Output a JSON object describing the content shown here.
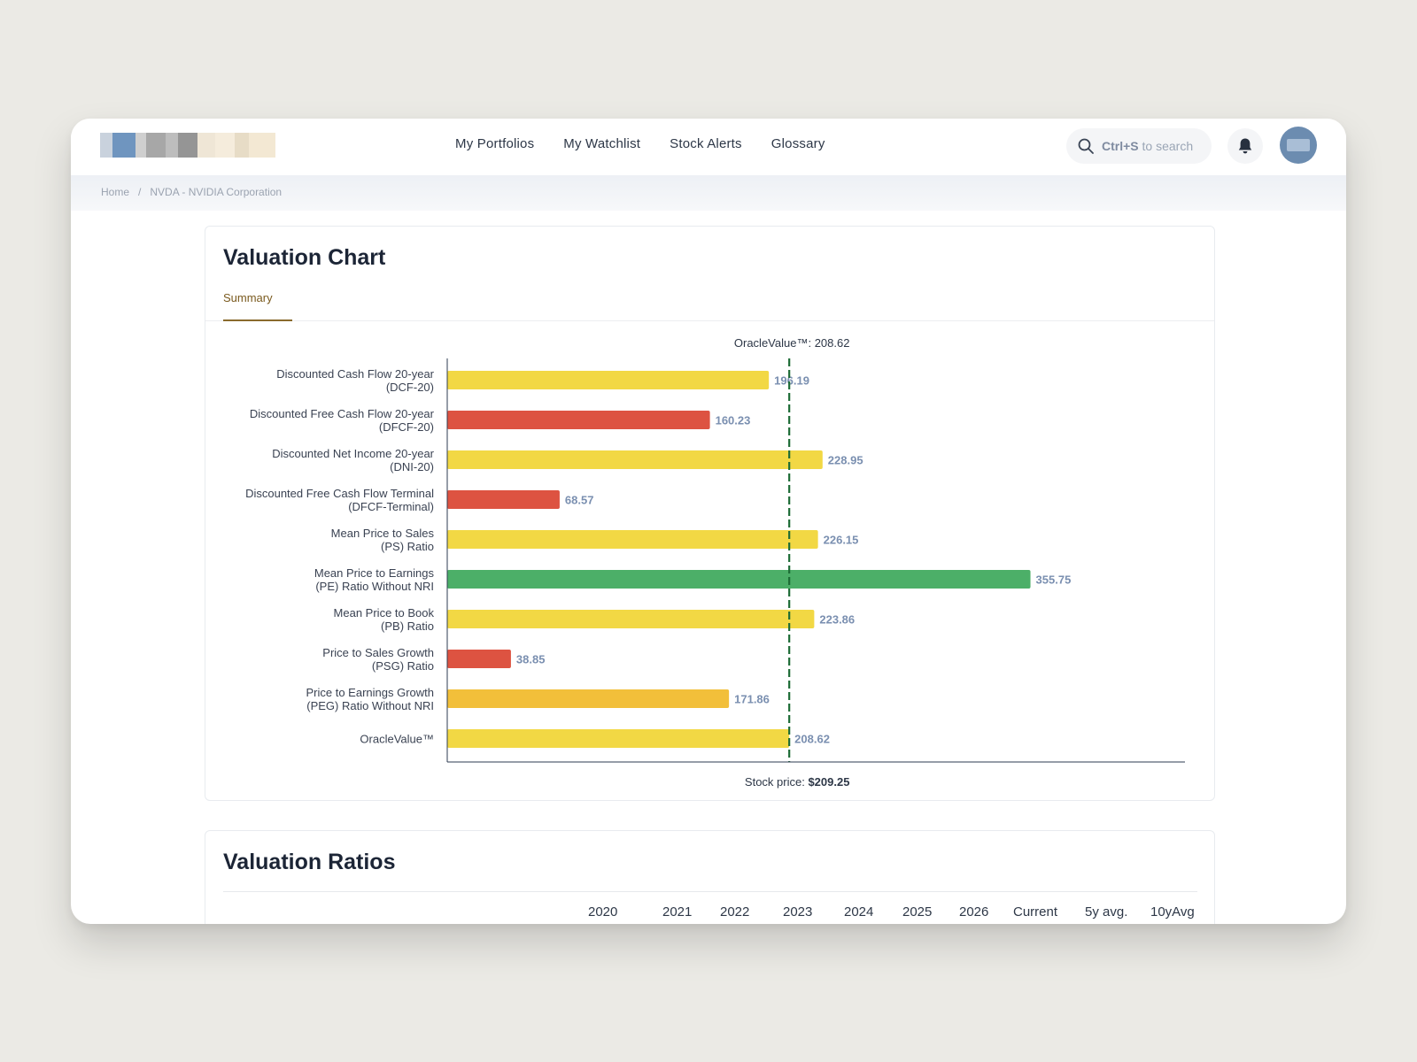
{
  "nav": {
    "links": [
      "My Portfolios",
      "My Watchlist",
      "Stock Alerts",
      "Glossary"
    ]
  },
  "search": {
    "shortcut": "Ctrl+S",
    "hint": "to search"
  },
  "breadcrumb": {
    "home": "Home",
    "separator": "/",
    "current": "NVDA - NVIDIA Corporation"
  },
  "valuation": {
    "title": "Valuation Chart",
    "tab": "Summary"
  },
  "chart_data": {
    "type": "bar",
    "orientation": "horizontal",
    "top_label": {
      "prefix": "OracleValue™:",
      "value": "208.62"
    },
    "bottom_label": {
      "prefix": "Stock price:",
      "value": "$209.25"
    },
    "reference_line": 208.62,
    "xlim": [
      0,
      450
    ],
    "colors": {
      "yellow": "#f2d844",
      "red": "#dd5341",
      "green": "#4caf68",
      "amber": "#f2bf3a",
      "value_text": "#7a8fb0",
      "ref_line": "#1c6b35"
    },
    "bars": [
      {
        "label": [
          "Discounted Cash Flow 20-year",
          "(DCF-20)"
        ],
        "value": 196.19,
        "display": "196.19",
        "color": "yellow"
      },
      {
        "label": [
          "Discounted Free Cash Flow 20-year",
          "(DFCF-20)"
        ],
        "value": 160.23,
        "display": "160.23",
        "color": "red"
      },
      {
        "label": [
          "Discounted Net Income 20-year",
          "(DNI-20)"
        ],
        "value": 228.95,
        "display": "228.95",
        "color": "yellow"
      },
      {
        "label": [
          "Discounted Free Cash Flow Terminal",
          "(DFCF-Terminal)"
        ],
        "value": 68.57,
        "display": "68.57",
        "color": "red"
      },
      {
        "label": [
          "Mean Price to Sales",
          "(PS) Ratio"
        ],
        "value": 226.15,
        "display": "226.15",
        "color": "yellow"
      },
      {
        "label": [
          "Mean Price to Earnings",
          "(PE) Ratio Without NRI"
        ],
        "value": 355.75,
        "display": "355.75",
        "color": "green"
      },
      {
        "label": [
          "Mean Price to Book",
          "(PB) Ratio"
        ],
        "value": 223.86,
        "display": "223.86",
        "color": "yellow"
      },
      {
        "label": [
          "Price to Sales Growth",
          "(PSG) Ratio"
        ],
        "value": 38.85,
        "display": "38.85",
        "color": "red"
      },
      {
        "label": [
          "Price to Earnings Growth",
          "(PEG) Ratio Without NRI"
        ],
        "value": 171.86,
        "display": "171.86",
        "color": "amber"
      },
      {
        "label": [
          "OracleValue™"
        ],
        "value": 208.62,
        "display": "208.62",
        "color": "yellow"
      }
    ]
  },
  "ratios": {
    "title": "Valuation Ratios",
    "columns": [
      "2020",
      "2021",
      "2022",
      "2023",
      "2024",
      "2025",
      "2026",
      "Current",
      "5y avg.",
      "10yAvg"
    ]
  }
}
